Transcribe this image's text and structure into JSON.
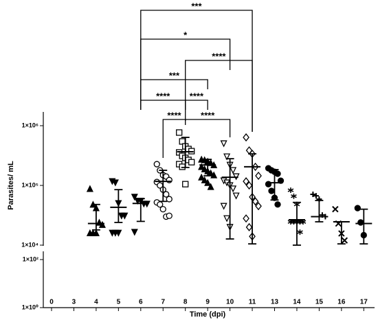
{
  "chart_data": {
    "type": "scatter",
    "x_label": "Time (dpi)",
    "y_label": "Parasites/ mL",
    "log_scale": true,
    "categories": [
      "0",
      "3",
      "4",
      "5",
      "6",
      "7",
      "8",
      "9",
      "10",
      "11",
      "13",
      "14",
      "15",
      "16",
      "17"
    ],
    "segments": [
      {
        "ylim": [
          10000,
          1700000
        ],
        "yticks": [
          {
            "value": 10000,
            "label": "1×10⁴"
          },
          {
            "value": 100000,
            "label": "1×10⁵"
          },
          {
            "value": 1000000,
            "label": "1×10⁶"
          }
        ]
      },
      {
        "ylim": [
          1,
          220
        ],
        "yticks": [
          {
            "value": 1,
            "label": "1×10⁰"
          },
          {
            "value": 100,
            "label": "1×10²"
          }
        ]
      }
    ],
    "series": [
      {
        "name": "4",
        "marker": "triangle-up",
        "category": 2,
        "values": [
          88000,
          48000,
          42000,
          24000,
          22000,
          16000,
          16000,
          16000
        ],
        "mean": 23000,
        "lower": 18000,
        "upper": 48000
      },
      {
        "name": "5",
        "marker": "triangle-down",
        "category": 3,
        "values": [
          117000,
          111000,
          50000,
          31000,
          31000,
          16000,
          16000,
          16000
        ],
        "mean": 43000,
        "lower": 24000,
        "upper": 85000
      },
      {
        "name": "6",
        "marker": "triangle-down",
        "category": 4,
        "values": [
          64000,
          55000,
          55000,
          49000,
          49000,
          16500
        ],
        "mean": 50000,
        "lower": 25000,
        "upper": 60000
      },
      {
        "name": "7",
        "marker": "circle-open",
        "category": 5,
        "values": [
          227000,
          179000,
          149000,
          141000,
          123000,
          114000,
          100000,
          85000,
          71000,
          59000,
          52000,
          48000,
          40000,
          30000,
          31000
        ],
        "mean": 117000,
        "lower": 54000,
        "upper": 179000
      },
      {
        "name": "8",
        "marker": "square-open",
        "category": 6,
        "values": [
          768000,
          545000,
          451000,
          407000,
          375000,
          357000,
          312000,
          289000,
          267000,
          245000,
          227000,
          205000,
          105000
        ],
        "mean": 366000,
        "lower": 200000,
        "upper": 637000
      },
      {
        "name": "9",
        "marker": "triangle-up",
        "category": 7,
        "values": [
          273000,
          267000,
          253000,
          239000,
          220000,
          205000,
          188000,
          174000,
          161000,
          149000,
          137000,
          123000,
          111000,
          95000
        ],
        "mean": 220000,
        "lower": 145000,
        "upper": 273000
      },
      {
        "name": "10",
        "marker": "triangle-down-open",
        "category": 8,
        "values": [
          502000,
          303000,
          220000,
          179000,
          141000,
          120000,
          111000,
          100000,
          88000,
          67000,
          45000,
          28000,
          20000
        ],
        "mean": 137000,
        "lower": 12700,
        "upper": 280000
      },
      {
        "name": "11",
        "marker": "diamond-open",
        "category": 9,
        "values": [
          637000,
          386000,
          338000,
          205000,
          145000,
          117000,
          100000,
          64000,
          54000,
          45000,
          28000,
          20000,
          14000
        ],
        "mean": 205000,
        "lower": 10500,
        "upper": 338000
      },
      {
        "name": "13",
        "marker": "circle",
        "category": 10,
        "values": [
          194000,
          179000,
          169000,
          157000,
          120000,
          105000,
          81000,
          62000,
          48000
        ],
        "mean": 111000,
        "lower": 57000,
        "upper": 184000
      },
      {
        "name": "14",
        "marker": "star",
        "category": 11,
        "values": [
          83000,
          66000,
          48000,
          24500,
          24500,
          24500,
          24500,
          24500,
          16500
        ],
        "mean": 26600,
        "lower": 10000,
        "upper": 52000
      },
      {
        "name": "15",
        "marker": "plus",
        "category": 12,
        "values": [
          71000,
          67000,
          59000,
          32000,
          30000
        ],
        "mean": 30000,
        "lower": 24600,
        "upper": 56000
      },
      {
        "name": "16",
        "marker": "cross",
        "category": 13,
        "values": [
          40000,
          23000,
          15700,
          12000
        ],
        "mean": 24600,
        "lower": 10500,
        "upper": 24600
      },
      {
        "name": "17",
        "marker": "circle",
        "category": 14,
        "values": [
          41700,
          24000,
          14700
        ],
        "mean": 23000,
        "lower": 10500,
        "upper": 40000
      }
    ],
    "significance": [
      {
        "from": 4,
        "to": 9,
        "label": "***"
      },
      {
        "from": 4,
        "to": 8,
        "label": "*"
      },
      {
        "from": 6,
        "to": 9,
        "label": "****"
      },
      {
        "from": 4,
        "to": 7,
        "label": "***"
      },
      {
        "from": 4,
        "to": 6,
        "label": "****"
      },
      {
        "from": 6,
        "to": 7,
        "label": "****"
      },
      {
        "from": 5,
        "to": 6,
        "label": "****"
      },
      {
        "from": 6,
        "to": 8,
        "label": "****"
      }
    ]
  }
}
